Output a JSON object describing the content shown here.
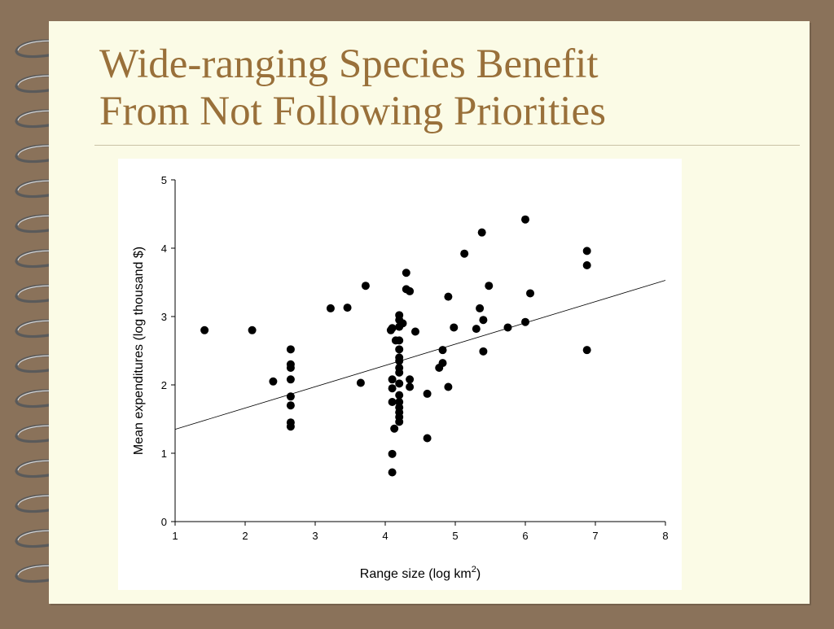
{
  "slide": {
    "title_line1": "Wide-ranging Species Benefit",
    "title_line2": "From Not Following Priorities"
  },
  "colors": {
    "background": "#8a725a",
    "page": "#fbfbe6",
    "title": "#99703a",
    "points": "#000000"
  },
  "chart_data": {
    "type": "scatter",
    "title": "",
    "xlabel": "Range size (log km",
    "xlabel_sup": "2",
    "xlabel_end": ")",
    "ylabel": "Mean expenditures (log thousand $)",
    "xlim": [
      1,
      8
    ],
    "ylim": [
      0,
      5
    ],
    "x_ticks": [
      "1",
      "2",
      "3",
      "4",
      "5",
      "6",
      "7",
      "8"
    ],
    "y_ticks": [
      "0",
      "1",
      "2",
      "3",
      "4",
      "5"
    ],
    "grid": false,
    "trendline": {
      "x": [
        1,
        8
      ],
      "y": [
        1.35,
        3.53
      ]
    },
    "points": [
      {
        "x": 1.42,
        "y": 2.8
      },
      {
        "x": 2.1,
        "y": 2.8
      },
      {
        "x": 2.4,
        "y": 2.05
      },
      {
        "x": 2.65,
        "y": 2.52
      },
      {
        "x": 2.65,
        "y": 2.3
      },
      {
        "x": 2.65,
        "y": 2.25
      },
      {
        "x": 2.65,
        "y": 2.08
      },
      {
        "x": 2.65,
        "y": 1.83
      },
      {
        "x": 2.65,
        "y": 1.7
      },
      {
        "x": 2.65,
        "y": 1.45
      },
      {
        "x": 2.65,
        "y": 1.39
      },
      {
        "x": 3.22,
        "y": 3.12
      },
      {
        "x": 3.46,
        "y": 3.13
      },
      {
        "x": 3.65,
        "y": 2.03
      },
      {
        "x": 3.72,
        "y": 3.45
      },
      {
        "x": 4.08,
        "y": 2.8
      },
      {
        "x": 4.1,
        "y": 2.83
      },
      {
        "x": 4.1,
        "y": 2.08
      },
      {
        "x": 4.1,
        "y": 1.95
      },
      {
        "x": 4.1,
        "y": 1.75
      },
      {
        "x": 4.1,
        "y": 0.99
      },
      {
        "x": 4.1,
        "y": 0.72
      },
      {
        "x": 4.13,
        "y": 1.36
      },
      {
        "x": 4.15,
        "y": 2.65
      },
      {
        "x": 4.2,
        "y": 3.02
      },
      {
        "x": 4.2,
        "y": 2.95
      },
      {
        "x": 4.2,
        "y": 2.85
      },
      {
        "x": 4.2,
        "y": 2.65
      },
      {
        "x": 4.2,
        "y": 2.52
      },
      {
        "x": 4.2,
        "y": 2.4
      },
      {
        "x": 4.2,
        "y": 2.35
      },
      {
        "x": 4.2,
        "y": 2.25
      },
      {
        "x": 4.2,
        "y": 2.18
      },
      {
        "x": 4.2,
        "y": 2.02
      },
      {
        "x": 4.2,
        "y": 1.85
      },
      {
        "x": 4.2,
        "y": 1.75
      },
      {
        "x": 4.2,
        "y": 1.67
      },
      {
        "x": 4.2,
        "y": 1.6
      },
      {
        "x": 4.2,
        "y": 1.53
      },
      {
        "x": 4.2,
        "y": 1.46
      },
      {
        "x": 4.25,
        "y": 2.9
      },
      {
        "x": 4.3,
        "y": 3.64
      },
      {
        "x": 4.3,
        "y": 3.4
      },
      {
        "x": 4.35,
        "y": 3.37
      },
      {
        "x": 4.35,
        "y": 2.08
      },
      {
        "x": 4.35,
        "y": 1.97
      },
      {
        "x": 4.43,
        "y": 2.78
      },
      {
        "x": 4.6,
        "y": 1.87
      },
      {
        "x": 4.6,
        "y": 1.22
      },
      {
        "x": 4.77,
        "y": 2.25
      },
      {
        "x": 4.82,
        "y": 2.51
      },
      {
        "x": 4.82,
        "y": 2.32
      },
      {
        "x": 4.9,
        "y": 3.29
      },
      {
        "x": 4.9,
        "y": 1.97
      },
      {
        "x": 4.98,
        "y": 2.84
      },
      {
        "x": 5.13,
        "y": 3.92
      },
      {
        "x": 5.3,
        "y": 2.82
      },
      {
        "x": 5.35,
        "y": 3.12
      },
      {
        "x": 5.38,
        "y": 4.23
      },
      {
        "x": 5.4,
        "y": 2.95
      },
      {
        "x": 5.4,
        "y": 2.49
      },
      {
        "x": 5.48,
        "y": 3.45
      },
      {
        "x": 5.75,
        "y": 2.84
      },
      {
        "x": 6.0,
        "y": 4.42
      },
      {
        "x": 6.0,
        "y": 2.92
      },
      {
        "x": 6.07,
        "y": 3.34
      },
      {
        "x": 6.88,
        "y": 3.96
      },
      {
        "x": 6.88,
        "y": 3.75
      },
      {
        "x": 6.88,
        "y": 2.51
      }
    ]
  }
}
